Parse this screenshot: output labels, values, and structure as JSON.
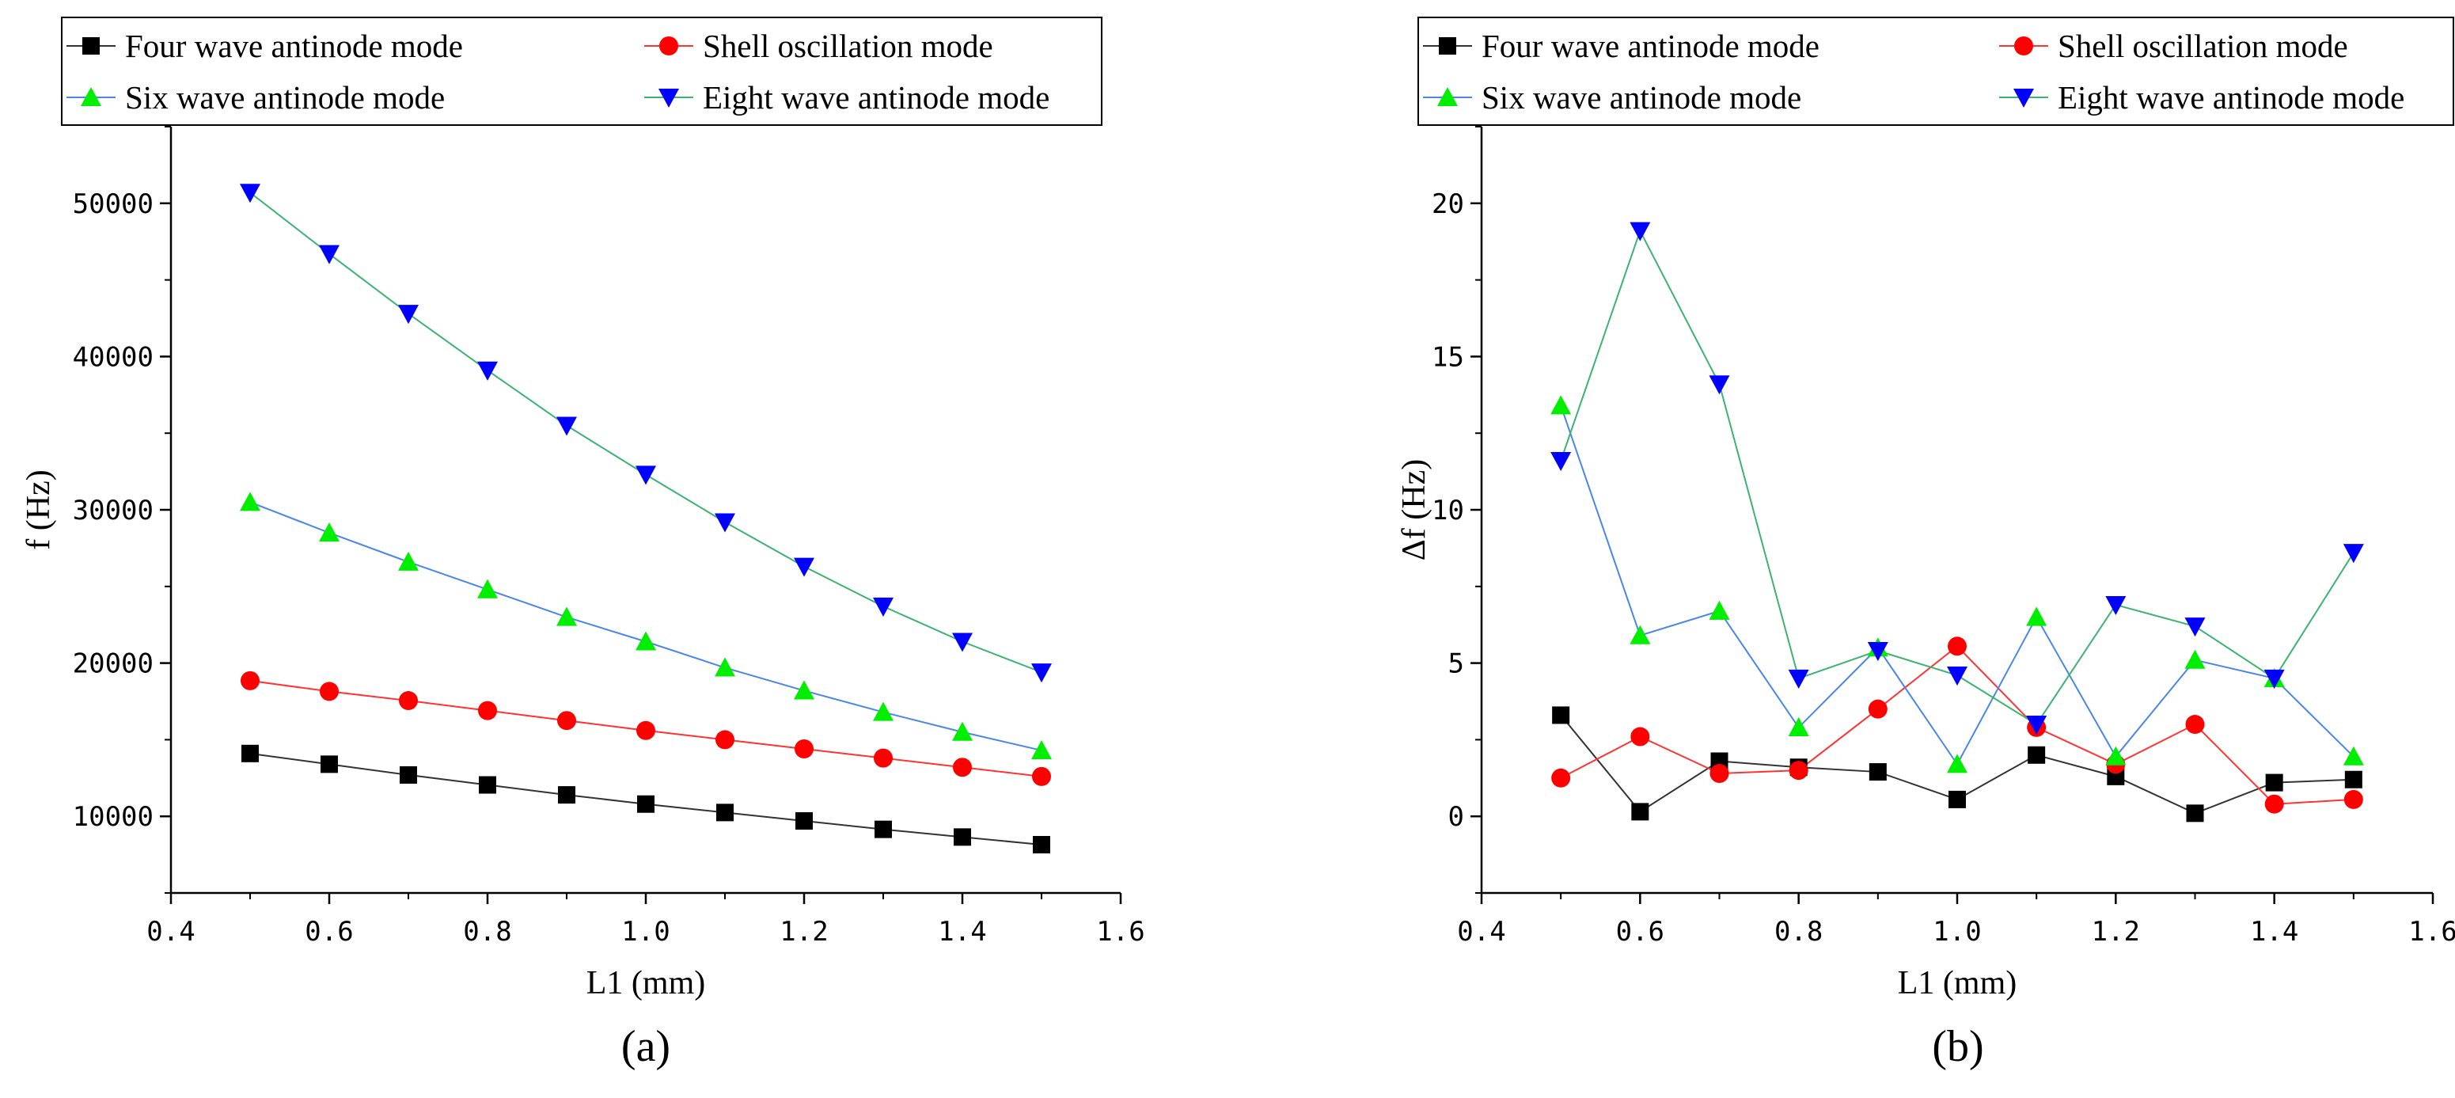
{
  "chart_data": [
    {
      "type": "line",
      "panel": "(a)",
      "title": "",
      "xlabel": "L1 (mm)",
      "ylabel": "f (Hz)",
      "xlim": [
        0.4,
        1.6
      ],
      "ylim": [
        5000,
        55000
      ],
      "xticks": [
        0.4,
        0.6,
        0.8,
        1.0,
        1.2,
        1.4,
        1.6
      ],
      "xtick_labels": [
        "0.4",
        "0.6",
        "0.8",
        "1.0",
        "1.2",
        "1.4",
        "1.6"
      ],
      "yticks": [
        10000,
        20000,
        30000,
        40000,
        50000
      ],
      "ytick_labels": [
        "10000",
        "20000",
        "30000",
        "40000",
        "50000"
      ],
      "grid": false,
      "legend_position": "top",
      "x": [
        0.5,
        0.6,
        0.7,
        0.8,
        0.9,
        1.0,
        1.1,
        1.2,
        1.3,
        1.4,
        1.5
      ],
      "series": [
        {
          "name": "Four wave antinode mode",
          "marker": "square",
          "marker_color": "#000000",
          "line_color": "#333333",
          "values": [
            14100,
            13400,
            12700,
            12050,
            11400,
            10800,
            10250,
            9700,
            9150,
            8650,
            8150
          ]
        },
        {
          "name": "Shell oscillation mode",
          "marker": "circle",
          "marker_color": "#ff0000",
          "line_color": "#ff3333",
          "values": [
            18850,
            18150,
            17550,
            16900,
            16250,
            15600,
            15000,
            14400,
            13800,
            13200,
            12600
          ]
        },
        {
          "name": "Six wave antinode mode",
          "marker": "triangle-up",
          "marker_color": "#00ee00",
          "line_color": "#4a86e8",
          "values": [
            30500,
            28500,
            26600,
            24800,
            23000,
            21400,
            19700,
            18200,
            16800,
            15500,
            14300
          ]
        },
        {
          "name": "Eight wave antinode mode",
          "marker": "triangle-down",
          "marker_color": "#0000ff",
          "line_color": "#3cb371",
          "values": [
            50700,
            46700,
            42800,
            39100,
            35500,
            32300,
            29200,
            26300,
            23700,
            21400,
            19400
          ]
        }
      ]
    },
    {
      "type": "line",
      "panel": "(b)",
      "title": "",
      "xlabel": "L1 (mm)",
      "ylabel": "Δf (Hz)",
      "xlim": [
        0.4,
        1.6
      ],
      "ylim": [
        -2.5,
        22.5
      ],
      "xticks": [
        0.4,
        0.6,
        0.8,
        1.0,
        1.2,
        1.4,
        1.6
      ],
      "xtick_labels": [
        "0.4",
        "0.6",
        "0.8",
        "1.0",
        "1.2",
        "1.4",
        "1.6"
      ],
      "yticks": [
        0,
        5,
        10,
        15,
        20
      ],
      "ytick_labels": [
        "0",
        "5",
        "10",
        "15",
        "20"
      ],
      "grid": false,
      "legend_position": "top",
      "x": [
        0.5,
        0.6,
        0.7,
        0.8,
        0.9,
        1.0,
        1.1,
        1.2,
        1.3,
        1.4,
        1.5
      ],
      "series": [
        {
          "name": "Four wave antinode mode",
          "marker": "square",
          "marker_color": "#000000",
          "line_color": "#333333",
          "values": [
            3.3,
            0.15,
            1.8,
            1.6,
            1.45,
            0.55,
            2.0,
            1.3,
            0.1,
            1.1,
            1.2
          ]
        },
        {
          "name": "Shell oscillation mode",
          "marker": "circle",
          "marker_color": "#ff0000",
          "line_color": "#ff3333",
          "values": [
            1.25,
            2.6,
            1.4,
            1.5,
            3.5,
            5.55,
            2.9,
            1.7,
            3.0,
            0.4,
            0.55
          ]
        },
        {
          "name": "Six wave antinode mode",
          "marker": "triangle-up",
          "marker_color": "#00ee00",
          "line_color": "#4a86e8",
          "values": [
            13.4,
            5.9,
            6.7,
            2.9,
            5.5,
            1.7,
            6.5,
            1.95,
            5.1,
            4.5,
            1.95
          ]
        },
        {
          "name": "Eight wave antinode mode",
          "marker": "triangle-down",
          "marker_color": "#0000ff",
          "line_color": "#3cb371",
          "values": [
            11.6,
            19.1,
            14.1,
            4.5,
            5.4,
            4.6,
            3.0,
            6.9,
            6.2,
            4.5,
            8.6
          ]
        }
      ]
    }
  ]
}
